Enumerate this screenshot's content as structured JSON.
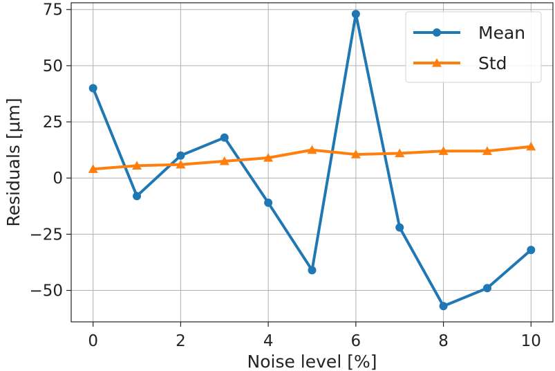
{
  "chart_data": {
    "type": "line",
    "xlabel": "Noise level [%]",
    "ylabel": "Residuals [μm]",
    "x": [
      0,
      1,
      2,
      3,
      4,
      5,
      6,
      7,
      8,
      9,
      10
    ],
    "xlim": [
      -0.5,
      10.5
    ],
    "ylim": [
      -64,
      78
    ],
    "xticks": [
      0,
      2,
      4,
      6,
      8,
      10
    ],
    "xtick_labels": [
      "0",
      "2",
      "4",
      "6",
      "8",
      "10"
    ],
    "yticks": [
      -50,
      -25,
      0,
      25,
      50,
      75
    ],
    "ytick_labels": [
      "−50",
      "−25",
      "0",
      "25",
      "50",
      "75"
    ],
    "grid": true,
    "legend_position": "top-right",
    "series": [
      {
        "name": "Mean",
        "color": "#1f77b4",
        "marker": "circle",
        "values": [
          40,
          -8,
          10,
          18,
          -11,
          -41,
          73,
          -22,
          -57,
          -49,
          -32
        ]
      },
      {
        "name": "Std",
        "color": "#ff7f0e",
        "marker": "triangle",
        "values": [
          4,
          5.5,
          6,
          7.5,
          9,
          12.5,
          10.5,
          11,
          12,
          12,
          14
        ]
      }
    ]
  }
}
